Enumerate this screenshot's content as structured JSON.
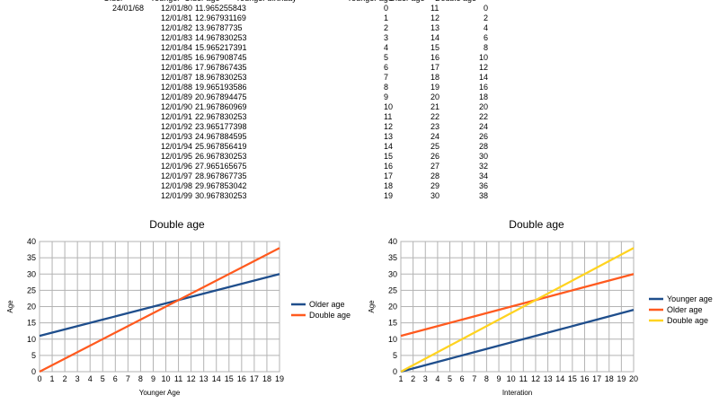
{
  "sheet": {
    "headers": [
      "Older",
      "Younger",
      "Older age",
      "Younger birthday",
      "Younger age",
      "Older age",
      "Double age"
    ],
    "older_birth": "24/01/68",
    "rows": [
      [
        "12/01/80",
        "11.965255843",
        "0",
        "11",
        "0"
      ],
      [
        "12/01/81",
        "12.967931169",
        "1",
        "12",
        "2"
      ],
      [
        "12/01/82",
        "13.96787735",
        "2",
        "13",
        "4"
      ],
      [
        "12/01/83",
        "14.967830253",
        "3",
        "14",
        "6"
      ],
      [
        "12/01/84",
        "15.965217391",
        "4",
        "15",
        "8"
      ],
      [
        "12/01/85",
        "16.967908745",
        "5",
        "16",
        "10"
      ],
      [
        "12/01/86",
        "17.967867435",
        "6",
        "17",
        "12"
      ],
      [
        "12/01/87",
        "18.967830253",
        "7",
        "18",
        "14"
      ],
      [
        "12/01/88",
        "19.965193586",
        "8",
        "19",
        "16"
      ],
      [
        "12/01/89",
        "20.967894475",
        "9",
        "20",
        "18"
      ],
      [
        "12/01/90",
        "21.967860969",
        "10",
        "21",
        "20"
      ],
      [
        "12/01/91",
        "22.967830253",
        "11",
        "22",
        "22"
      ],
      [
        "12/01/92",
        "23.965177398",
        "12",
        "23",
        "24"
      ],
      [
        "12/01/93",
        "24.967884595",
        "13",
        "24",
        "26"
      ],
      [
        "12/01/94",
        "25.967856419",
        "14",
        "25",
        "28"
      ],
      [
        "12/01/95",
        "26.967830253",
        "15",
        "26",
        "30"
      ],
      [
        "12/01/96",
        "27.965165675",
        "16",
        "27",
        "32"
      ],
      [
        "12/01/97",
        "28.967867735",
        "17",
        "28",
        "34"
      ],
      [
        "12/01/98",
        "29.967853042",
        "18",
        "29",
        "36"
      ],
      [
        "12/01/99",
        "30.967830253",
        "19",
        "30",
        "38"
      ]
    ]
  },
  "chart_data": [
    {
      "type": "line",
      "title": "Double age",
      "xlabel": "Younger Age",
      "ylabel": "Age",
      "x": [
        0,
        1,
        2,
        3,
        4,
        5,
        6,
        7,
        8,
        9,
        10,
        11,
        12,
        13,
        14,
        15,
        16,
        17,
        18,
        19
      ],
      "xlim": [
        0,
        19
      ],
      "ylim": [
        0,
        40
      ],
      "yticks": [
        0,
        5,
        10,
        15,
        20,
        25,
        30,
        35,
        40
      ],
      "grid": true,
      "legend": "right",
      "series": [
        {
          "name": "Older age",
          "color": "#1f4e8c",
          "values": [
            11,
            12,
            13,
            14,
            15,
            16,
            17,
            18,
            19,
            20,
            21,
            22,
            23,
            24,
            25,
            26,
            27,
            28,
            29,
            30
          ]
        },
        {
          "name": "Double age",
          "color": "#ff5a1f",
          "values": [
            0,
            2,
            4,
            6,
            8,
            10,
            12,
            14,
            16,
            18,
            20,
            22,
            24,
            26,
            28,
            30,
            32,
            34,
            36,
            38
          ]
        }
      ]
    },
    {
      "type": "line",
      "title": "Double age",
      "xlabel": "Interation",
      "ylabel": "Age",
      "x": [
        1,
        2,
        3,
        4,
        5,
        6,
        7,
        8,
        9,
        10,
        11,
        12,
        13,
        14,
        15,
        16,
        17,
        18,
        19,
        20
      ],
      "xlim": [
        1,
        20
      ],
      "ylim": [
        0,
        40
      ],
      "yticks": [
        0,
        5,
        10,
        15,
        20,
        25,
        30,
        35,
        40
      ],
      "grid": true,
      "legend": "right",
      "series": [
        {
          "name": "Younger age",
          "color": "#1f4e8c",
          "values": [
            0,
            1,
            2,
            3,
            4,
            5,
            6,
            7,
            8,
            9,
            10,
            11,
            12,
            13,
            14,
            15,
            16,
            17,
            18,
            19
          ]
        },
        {
          "name": "Older age",
          "color": "#ff5a1f",
          "values": [
            11,
            12,
            13,
            14,
            15,
            16,
            17,
            18,
            19,
            20,
            21,
            22,
            23,
            24,
            25,
            26,
            27,
            28,
            29,
            30
          ]
        },
        {
          "name": "Double age",
          "color": "#ffd320",
          "values": [
            0,
            2,
            4,
            6,
            8,
            10,
            12,
            14,
            16,
            18,
            20,
            22,
            24,
            26,
            28,
            30,
            32,
            34,
            36,
            38
          ]
        }
      ]
    }
  ]
}
